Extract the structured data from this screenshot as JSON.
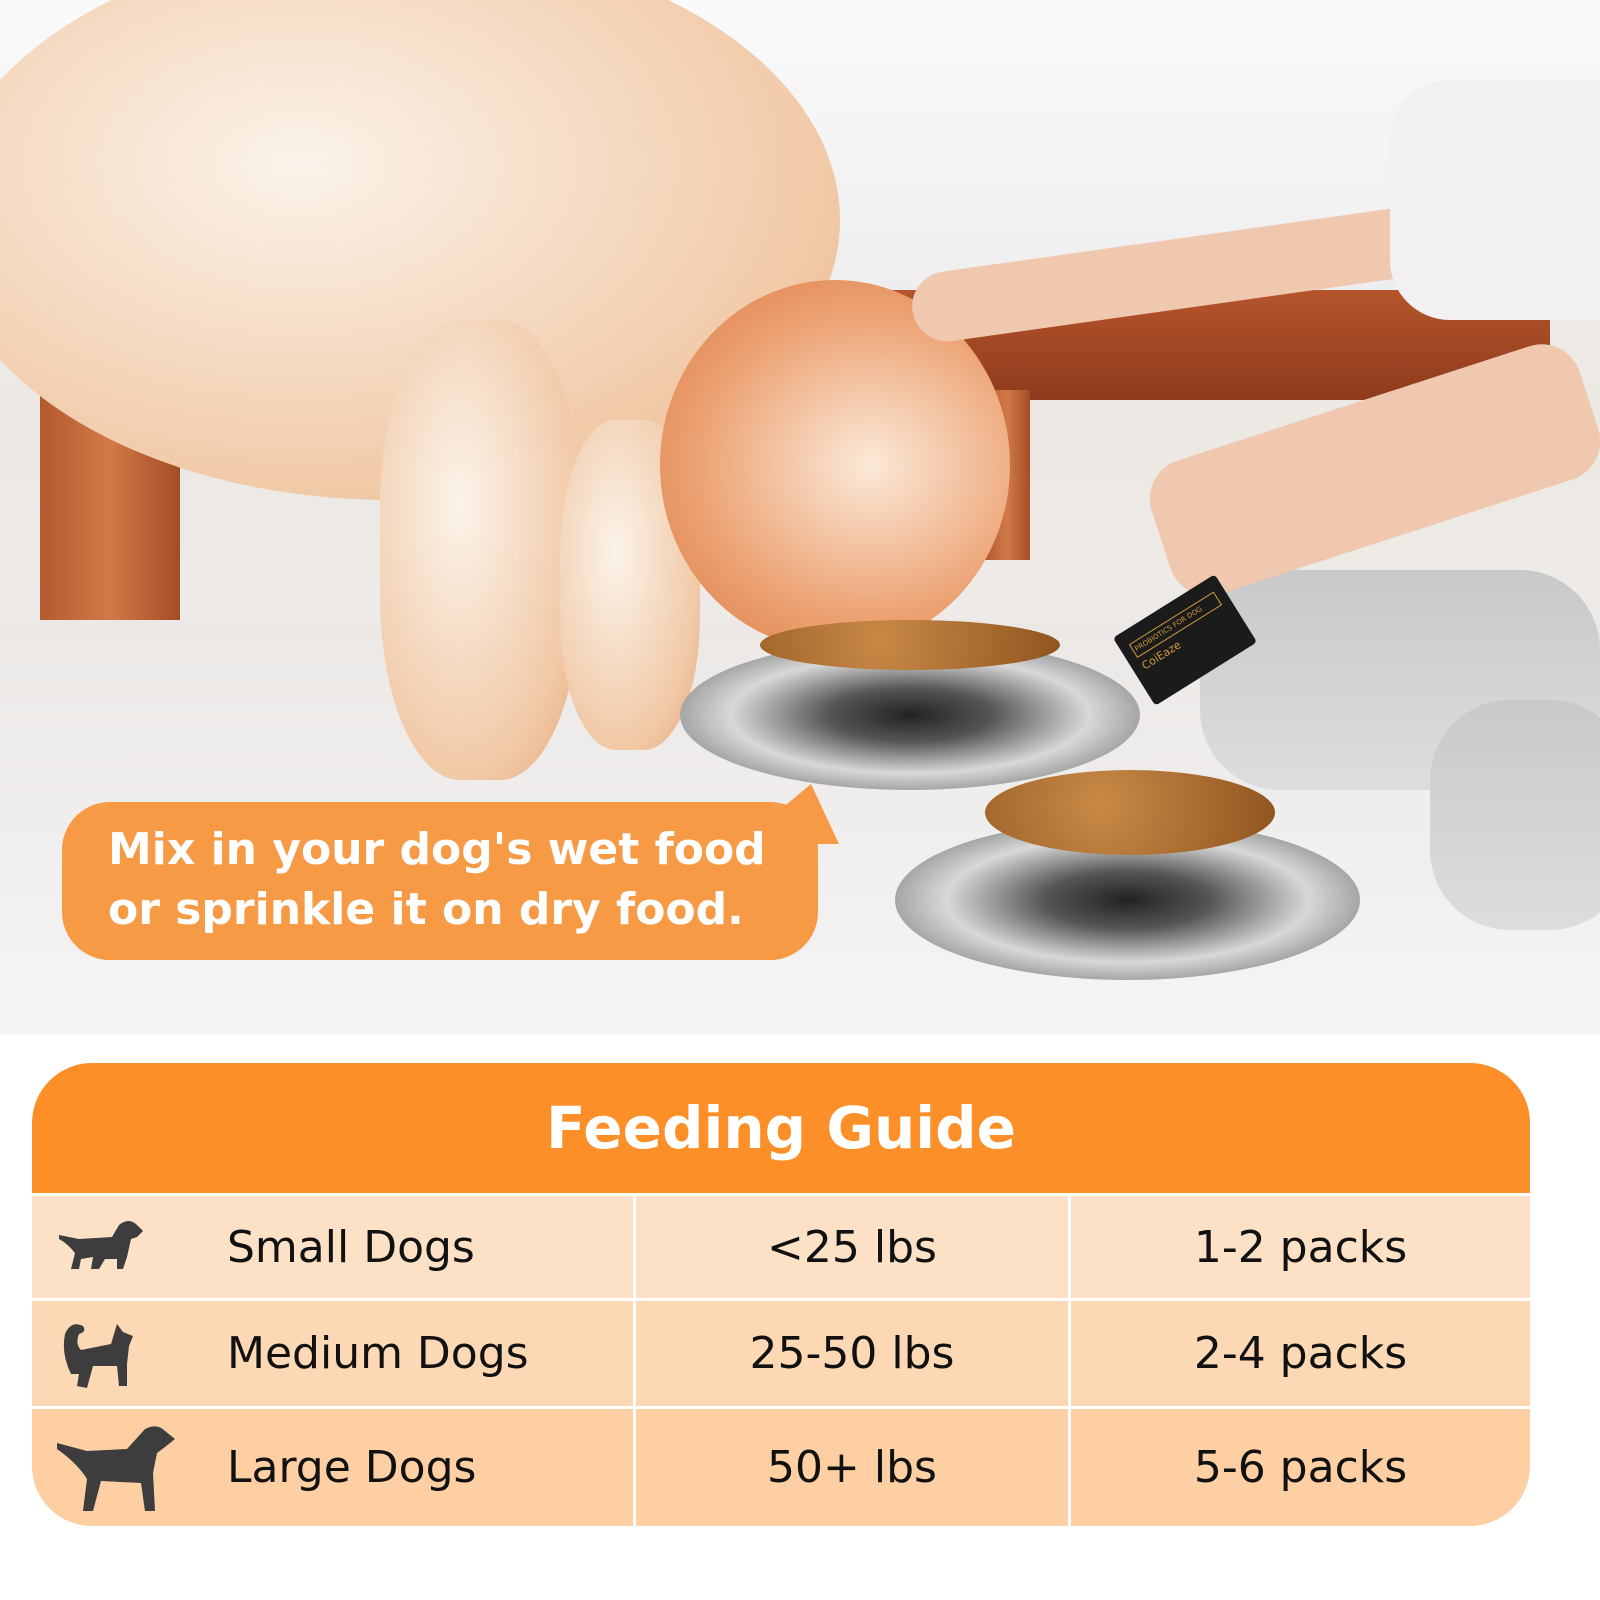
{
  "photo": {
    "packet": {
      "brand": "CoiEaze",
      "label": "PROBIOTICS FOR DOG"
    }
  },
  "callout": {
    "text": "Mix in your dog's wet food or sprinkle it on dry food."
  },
  "feeding_guide": {
    "title": "Feeding Guide",
    "accent_color": "#fc8f28",
    "rows": [
      {
        "icon": "small-dog-icon",
        "size": "Small Dogs",
        "weight": "<25 lbs",
        "dose": "1-2 packs",
        "color": "#fde1c6"
      },
      {
        "icon": "medium-dog-icon",
        "size": "Medium Dogs",
        "weight": "25-50 lbs",
        "dose": "2-4 packs",
        "color": "#fdd8b5"
      },
      {
        "icon": "large-dog-icon",
        "size": "Large Dogs",
        "weight": "50+ lbs",
        "dose": "5-6 packs",
        "color": "#fdcfa2"
      }
    ]
  }
}
